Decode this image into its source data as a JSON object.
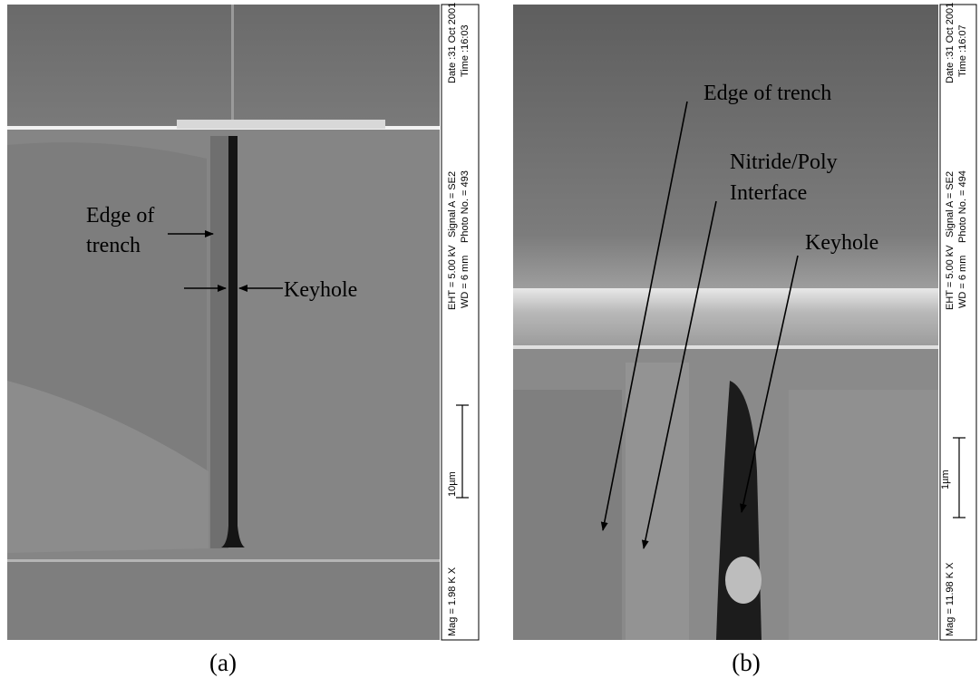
{
  "panels": [
    {
      "label": "(a)",
      "annotations": [
        {
          "lines": [
            "Edge of",
            "trench"
          ]
        },
        {
          "lines": [
            "Keyhole"
          ]
        }
      ],
      "info": {
        "date": "Date :31 Oct 2001",
        "time": "Time :16:03",
        "signal": "Signal A = SE2",
        "photo": "Photo No. = 493",
        "eht": "EHT = 5.00 kV",
        "wd": "WD =  6 mm",
        "mag": "Mag =  1.98 K X",
        "scale": "10µm"
      }
    },
    {
      "label": "(b)",
      "annotations": [
        {
          "lines": [
            "Edge of trench"
          ]
        },
        {
          "lines": [
            "Nitride/Poly",
            "Interface"
          ]
        },
        {
          "lines": [
            "Keyhole"
          ]
        }
      ],
      "info": {
        "date": "Date :31 Oct 2001",
        "time": "Time :16:07",
        "signal": "Signal A = SE2",
        "photo": "Photo No. = 494",
        "eht": "EHT = 5.00 kV",
        "wd": "WD =  6 mm",
        "mag": "Mag =  11.98 K X",
        "scale": "1µm"
      }
    }
  ]
}
